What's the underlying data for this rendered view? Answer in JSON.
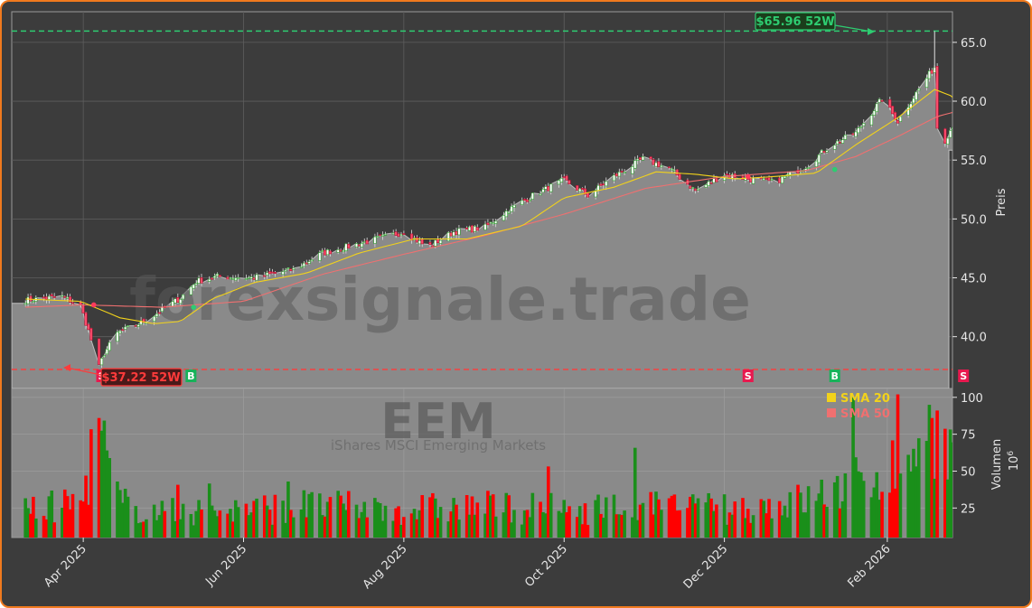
{
  "watermark": {
    "brand": "forexsignale.trade",
    "symbol": "EEM",
    "name": "iShares MSCI Emerging Markets"
  },
  "colors": {
    "up": "#1a8f1a",
    "down": "#ff0000",
    "sma20": "#f2d21b",
    "sma50": "#f07070",
    "high52": "#2ecc71",
    "low52": "#ff3b3b",
    "price_area": "#8a8a8a"
  },
  "chart_data": {
    "type": "candlestick",
    "x_tick_labels": [
      "Apr 2025",
      "Jun 2025",
      "Aug 2025",
      "Oct 2025",
      "Dec 2025",
      "Feb 2026"
    ],
    "price_axis": {
      "label": "Preis",
      "ticks": [
        40.0,
        45.0,
        50.0,
        55.0,
        60.0,
        65.0
      ],
      "range": [
        35.6,
        67.6
      ]
    },
    "volume_axis": {
      "label": "Volumen",
      "unit": "1e6",
      "ticks": [
        25,
        50,
        75,
        100
      ],
      "range": [
        5,
        106
      ]
    },
    "legend": {
      "position": "top-right",
      "entries": [
        {
          "label": "SMA 20",
          "color": "#f2d21b"
        },
        {
          "label": "SMA 50",
          "color": "#f07070"
        }
      ]
    },
    "annotations": [
      {
        "text": "$65.96 52W",
        "value": 65.96,
        "kind": "52-week high"
      },
      {
        "text": "$37.22 52W",
        "value": 37.22,
        "kind": "52-week low"
      }
    ],
    "signals": [
      {
        "label": "S",
        "date": "2025-04-08"
      },
      {
        "label": "B",
        "date": "2025-05-12"
      },
      {
        "label": "S",
        "date": "2025-12-10"
      },
      {
        "label": "B",
        "date": "2026-01-12"
      },
      {
        "label": "S",
        "date": "2026-03-02"
      }
    ],
    "start_date": "2025-03-10",
    "end_date": "2026-03-02",
    "price_anchors": [
      [
        "2025-03-10",
        43.1
      ],
      [
        "2025-03-24",
        43.4
      ],
      [
        "2025-03-31",
        42.6
      ],
      [
        "2025-04-03",
        40.5
      ],
      [
        "2025-04-07",
        37.4
      ],
      [
        "2025-04-09",
        38.6
      ],
      [
        "2025-04-14",
        40.3
      ],
      [
        "2025-04-25",
        41.4
      ],
      [
        "2025-05-08",
        43.3
      ],
      [
        "2025-05-14",
        44.7
      ],
      [
        "2025-05-22",
        45.1
      ],
      [
        "2025-06-05",
        45.0
      ],
      [
        "2025-06-20",
        45.7
      ],
      [
        "2025-07-01",
        47.1
      ],
      [
        "2025-07-15",
        47.9
      ],
      [
        "2025-08-01",
        48.9
      ],
      [
        "2025-08-10",
        47.6
      ],
      [
        "2025-08-20",
        48.9
      ],
      [
        "2025-09-01",
        49.3
      ],
      [
        "2025-09-10",
        50.8
      ],
      [
        "2025-09-20",
        52.1
      ],
      [
        "2025-10-01",
        53.3
      ],
      [
        "2025-10-10",
        52.0
      ],
      [
        "2025-10-20",
        53.6
      ],
      [
        "2025-10-31",
        55.1
      ],
      [
        "2025-11-10",
        54.3
      ],
      [
        "2025-11-20",
        52.4
      ],
      [
        "2025-12-01",
        53.8
      ],
      [
        "2025-12-10",
        53.4
      ],
      [
        "2025-12-20",
        53.1
      ],
      [
        "2026-01-02",
        54.6
      ],
      [
        "2026-01-10",
        56.2
      ],
      [
        "2026-01-20",
        57.3
      ],
      [
        "2026-01-30",
        60.2
      ],
      [
        "2026-02-05",
        58.3
      ],
      [
        "2026-02-12",
        60.7
      ],
      [
        "2026-02-17",
        62.3
      ],
      [
        "2026-02-19",
        62.9
      ],
      [
        "2026-02-20",
        57.8
      ],
      [
        "2026-02-23",
        56.7
      ],
      [
        "2026-02-26",
        58.0
      ],
      [
        "2026-03-02",
        55.6
      ]
    ],
    "sma20_anchors": [
      [
        "2025-03-10",
        43.2
      ],
      [
        "2025-03-31",
        43.0
      ],
      [
        "2025-04-15",
        41.6
      ],
      [
        "2025-04-28",
        41.1
      ],
      [
        "2025-05-08",
        41.3
      ],
      [
        "2025-05-20",
        43.2
      ],
      [
        "2025-06-05",
        44.6
      ],
      [
        "2025-06-25",
        45.4
      ],
      [
        "2025-07-15",
        47.1
      ],
      [
        "2025-08-05",
        48.3
      ],
      [
        "2025-08-25",
        48.3
      ],
      [
        "2025-09-15",
        49.4
      ],
      [
        "2025-10-01",
        51.8
      ],
      [
        "2025-10-20",
        52.7
      ],
      [
        "2025-11-05",
        54.0
      ],
      [
        "2025-11-20",
        53.8
      ],
      [
        "2025-12-05",
        53.4
      ],
      [
        "2025-12-20",
        53.6
      ],
      [
        "2026-01-05",
        53.9
      ],
      [
        "2026-01-20",
        56.3
      ],
      [
        "2026-02-05",
        58.6
      ],
      [
        "2026-02-19",
        61.0
      ],
      [
        "2026-02-26",
        60.4
      ],
      [
        "2026-03-02",
        59.3
      ]
    ],
    "sma50_anchors": [
      [
        "2025-03-10",
        42.5
      ],
      [
        "2025-04-01",
        42.7
      ],
      [
        "2025-05-01",
        42.5
      ],
      [
        "2025-06-01",
        43.0
      ],
      [
        "2025-07-01",
        45.3
      ],
      [
        "2025-08-01",
        47.0
      ],
      [
        "2025-09-01",
        48.6
      ],
      [
        "2025-10-01",
        50.4
      ],
      [
        "2025-11-01",
        52.6
      ],
      [
        "2025-12-01",
        53.6
      ],
      [
        "2026-01-01",
        54.1
      ],
      [
        "2026-01-20",
        55.3
      ],
      [
        "2026-02-05",
        57.0
      ],
      [
        "2026-02-20",
        58.7
      ],
      [
        "2026-03-02",
        59.3
      ]
    ],
    "volume_anchors": [
      [
        "2025-03-10",
        22
      ],
      [
        "2025-04-01",
        30
      ],
      [
        "2025-04-07",
        85
      ],
      [
        "2025-04-10",
        55
      ],
      [
        "2025-04-15",
        28
      ],
      [
        "2025-05-01",
        22
      ],
      [
        "2025-06-01",
        24
      ],
      [
        "2025-07-01",
        26
      ],
      [
        "2025-08-01",
        24
      ],
      [
        "2025-09-01",
        26
      ],
      [
        "2025-10-01",
        24
      ],
      [
        "2025-11-01",
        26
      ],
      [
        "2025-12-01",
        24
      ],
      [
        "2026-01-01",
        30
      ],
      [
        "2026-01-20",
        42
      ],
      [
        "2026-02-05",
        55
      ],
      [
        "2026-02-19",
        80
      ],
      [
        "2026-03-02",
        45
      ]
    ]
  }
}
